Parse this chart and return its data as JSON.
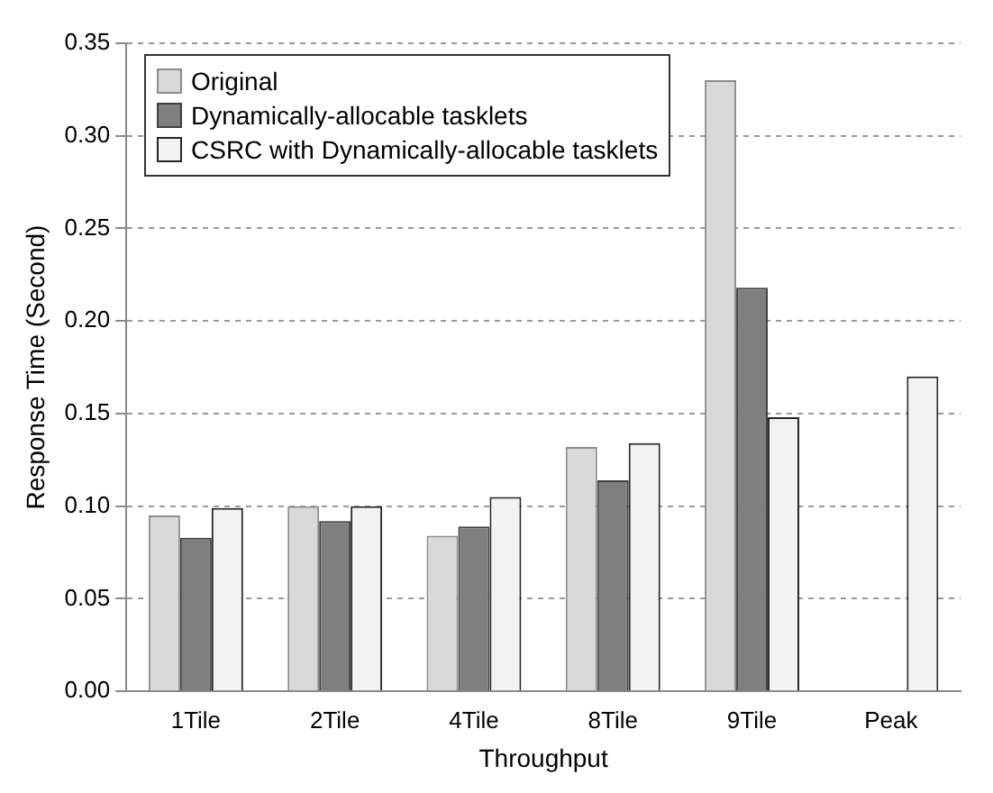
{
  "chart_data": {
    "type": "bar",
    "xlabel": "Throughput",
    "ylabel": "Response Time (Second)",
    "categories": [
      "1Tile",
      "2Tile",
      "4Tile",
      "8Tile",
      "9Tile",
      "Peak"
    ],
    "series": [
      {
        "name": "Original",
        "color": "#d9d9d9",
        "values": [
          0.095,
          0.1,
          0.084,
          0.132,
          0.33,
          null
        ]
      },
      {
        "name": "Dynamically-allocable tasklets",
        "color": "#7f7f7f",
        "values": [
          0.083,
          0.092,
          0.089,
          0.114,
          0.218,
          null
        ]
      },
      {
        "name": "CSRC with Dynamically-allocable tasklets",
        "color": "#f2f2f2",
        "values": [
          0.099,
          0.1,
          0.105,
          0.134,
          0.148,
          0.17
        ]
      }
    ],
    "ylim": [
      0,
      0.35
    ],
    "yticks": [
      {
        "value": 0,
        "label": "0.00"
      },
      {
        "value": 0.05,
        "label": "0.05"
      },
      {
        "value": 0.1,
        "label": "0.10"
      },
      {
        "value": 0.15,
        "label": "0.15"
      },
      {
        "value": 0.2,
        "label": "0.20"
      },
      {
        "value": 0.25,
        "label": "0.25"
      },
      {
        "value": 0.3,
        "label": "0.30"
      },
      {
        "value": 0.35,
        "label": "0.35"
      }
    ],
    "grid": "y",
    "legend": "top left"
  }
}
